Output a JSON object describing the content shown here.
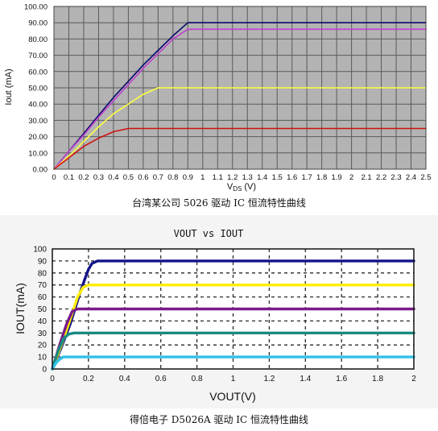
{
  "chart_data": [
    {
      "type": "line",
      "title": "",
      "caption": "台湾某公司 5026 驱动 IC 恒流特性曲线",
      "xlabel_main": "V",
      "xlabel_sub": "DS",
      "xlabel_unit": "(V)",
      "ylabel": "Iout (mA)",
      "xlim": [
        0,
        2.5
      ],
      "ylim": [
        0,
        100
      ],
      "grid": true,
      "xticks": [
        "0",
        "0.1",
        "0.2",
        "0.3",
        "0.4",
        "0.5",
        "0.6",
        "0.7",
        "0.8",
        "0.9",
        "1",
        "1.1",
        "1.2",
        "1.3",
        "1.4",
        "1.5",
        "1.6",
        "1.7",
        "1.8",
        "1.9",
        "2",
        "2.1",
        "2.2",
        "2.3",
        "2.4",
        "2.5"
      ],
      "yticks": [
        "0.00",
        "10.00",
        "20.00",
        "30.00",
        "40.00",
        "50.00",
        "60.00",
        "70.00",
        "80.00",
        "90.00",
        "100.00"
      ],
      "colors": {
        "background": "#b3b3b3",
        "grid": "#5a5a5a"
      },
      "series": [
        {
          "color": "#0a0a6a",
          "x": [
            0,
            0.1,
            0.2,
            0.3,
            0.4,
            0.5,
            0.6,
            0.7,
            0.8,
            0.9,
            2.5
          ],
          "y": [
            0,
            11,
            22,
            33,
            44,
            54,
            64,
            73,
            82,
            90,
            90
          ]
        },
        {
          "color": "#c040d0",
          "x": [
            0,
            0.1,
            0.2,
            0.3,
            0.4,
            0.5,
            0.6,
            0.7,
            0.8,
            0.9,
            2.5
          ],
          "y": [
            0,
            11,
            21,
            32,
            42,
            52,
            62,
            71,
            80,
            86,
            86
          ]
        },
        {
          "color": "#ffff40",
          "x": [
            0,
            0.1,
            0.2,
            0.3,
            0.4,
            0.5,
            0.6,
            0.7,
            2.5
          ],
          "y": [
            0,
            8,
            17,
            26,
            34,
            40,
            46,
            50,
            50
          ]
        },
        {
          "color": "#d01010",
          "x": [
            0,
            0.1,
            0.2,
            0.3,
            0.4,
            0.5,
            2.5
          ],
          "y": [
            0,
            7,
            14,
            19,
            23,
            25,
            25
          ]
        }
      ]
    },
    {
      "type": "line",
      "title": "VOUT vs IOUT",
      "caption": "得倍电子 D5026A 驱动 IC 恒流特性曲线",
      "xlabel": "VOUT(V)",
      "ylabel": "IOUT(mA)",
      "xlim": [
        0,
        2
      ],
      "ylim": [
        0,
        100
      ],
      "grid": true,
      "xticks": [
        "0",
        "0.2",
        "0.4",
        "0.6",
        "0.8",
        "1",
        "1.2",
        "1.4",
        "1.6",
        "1.8",
        "2"
      ],
      "yticks": [
        "0",
        "10",
        "20",
        "30",
        "40",
        "50",
        "60",
        "70",
        "80",
        "90",
        "100"
      ],
      "colors": {
        "background": "#ffffff",
        "grid": "#2a2a2a"
      },
      "series": [
        {
          "color": "#14148a",
          "x": [
            0,
            0.05,
            0.1,
            0.15,
            0.18,
            0.2,
            0.22,
            0.25,
            0.3,
            2
          ],
          "y": [
            0,
            18,
            38,
            62,
            75,
            83,
            88,
            90,
            90,
            90
          ]
        },
        {
          "color": "#ffee00",
          "x": [
            0,
            0.05,
            0.1,
            0.14,
            0.17,
            0.2,
            2
          ],
          "y": [
            0,
            20,
            42,
            60,
            68,
            70,
            70
          ]
        },
        {
          "color": "#7a1a8a",
          "x": [
            0,
            0.04,
            0.08,
            0.11,
            0.14,
            2
          ],
          "y": [
            0,
            20,
            38,
            48,
            50,
            50
          ]
        },
        {
          "color": "#1a8a80",
          "x": [
            0,
            0.03,
            0.06,
            0.09,
            0.12,
            2
          ],
          "y": [
            0,
            14,
            25,
            29,
            30,
            30
          ]
        },
        {
          "color": "#30c0e8",
          "x": [
            0,
            0.02,
            0.04,
            0.06,
            0.08,
            2
          ],
          "y": [
            0,
            5,
            8,
            10,
            10,
            10
          ]
        }
      ]
    }
  ]
}
